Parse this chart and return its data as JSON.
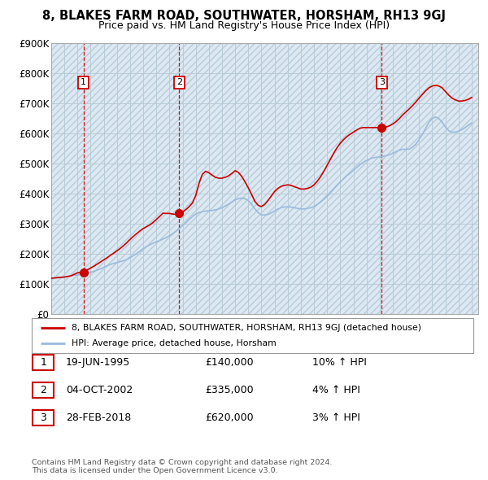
{
  "title": "8, BLAKES FARM ROAD, SOUTHWATER, HORSHAM, RH13 9GJ",
  "subtitle": "Price paid vs. HM Land Registry's House Price Index (HPI)",
  "ylim": [
    0,
    900000
  ],
  "yticks": [
    0,
    100000,
    200000,
    300000,
    400000,
    500000,
    600000,
    700000,
    800000,
    900000
  ],
  "ytick_labels": [
    "£0",
    "£100K",
    "£200K",
    "£300K",
    "£400K",
    "£500K",
    "£600K",
    "£700K",
    "£800K",
    "£900K"
  ],
  "xlim_start": 1993.0,
  "xlim_end": 2025.5,
  "sales": [
    {
      "year": 1995.46,
      "price": 140000,
      "label": "1"
    },
    {
      "year": 2002.75,
      "price": 335000,
      "label": "2"
    },
    {
      "year": 2018.16,
      "price": 620000,
      "label": "3"
    }
  ],
  "sale_vline_color": "#cc0000",
  "sale_dot_color": "#cc0000",
  "hpi_line_color": "#99bbdd",
  "price_line_color": "#cc0000",
  "hatch_bg_color": "#dde8f0",
  "plot_bg_color": "#e8eff5",
  "legend_items": [
    "8, BLAKES FARM ROAD, SOUTHWATER, HORSHAM, RH13 9GJ (detached house)",
    "HPI: Average price, detached house, Horsham"
  ],
  "table_rows": [
    {
      "num": "1",
      "date": "19-JUN-1995",
      "price": "£140,000",
      "hpi": "10% ↑ HPI"
    },
    {
      "num": "2",
      "date": "04-OCT-2002",
      "price": "£335,000",
      "hpi": "4% ↑ HPI"
    },
    {
      "num": "3",
      "date": "28-FEB-2018",
      "price": "£620,000",
      "hpi": "3% ↑ HPI"
    }
  ],
  "footnote": "Contains HM Land Registry data © Crown copyright and database right 2024.\nThis data is licensed under the Open Government Licence v3.0.",
  "hpi_data_x": [
    1993.0,
    1993.25,
    1993.5,
    1993.75,
    1994.0,
    1994.25,
    1994.5,
    1994.75,
    1995.0,
    1995.25,
    1995.5,
    1995.75,
    1996.0,
    1996.25,
    1996.5,
    1996.75,
    1997.0,
    1997.25,
    1997.5,
    1997.75,
    1998.0,
    1998.25,
    1998.5,
    1998.75,
    1999.0,
    1999.25,
    1999.5,
    1999.75,
    2000.0,
    2000.25,
    2000.5,
    2000.75,
    2001.0,
    2001.25,
    2001.5,
    2001.75,
    2002.0,
    2002.25,
    2002.5,
    2002.75,
    2003.0,
    2003.25,
    2003.5,
    2003.75,
    2004.0,
    2004.25,
    2004.5,
    2004.75,
    2005.0,
    2005.25,
    2005.5,
    2005.75,
    2006.0,
    2006.25,
    2006.5,
    2006.75,
    2007.0,
    2007.25,
    2007.5,
    2007.75,
    2008.0,
    2008.25,
    2008.5,
    2008.75,
    2009.0,
    2009.25,
    2009.5,
    2009.75,
    2010.0,
    2010.25,
    2010.5,
    2010.75,
    2011.0,
    2011.25,
    2011.5,
    2011.75,
    2012.0,
    2012.25,
    2012.5,
    2012.75,
    2013.0,
    2013.25,
    2013.5,
    2013.75,
    2014.0,
    2014.25,
    2014.5,
    2014.75,
    2015.0,
    2015.25,
    2015.5,
    2015.75,
    2016.0,
    2016.25,
    2016.5,
    2016.75,
    2017.0,
    2017.25,
    2017.5,
    2017.75,
    2018.0,
    2018.25,
    2018.5,
    2018.75,
    2019.0,
    2019.25,
    2019.5,
    2019.75,
    2020.0,
    2020.25,
    2020.5,
    2020.75,
    2021.0,
    2021.25,
    2021.5,
    2021.75,
    2022.0,
    2022.25,
    2022.5,
    2022.75,
    2023.0,
    2023.25,
    2023.5,
    2023.75,
    2024.0,
    2024.25,
    2024.5,
    2024.75,
    2025.0
  ],
  "hpi_data_y": [
    120000,
    121000,
    122000,
    123000,
    124000,
    126000,
    128000,
    130000,
    131000,
    132000,
    134000,
    137000,
    140000,
    143000,
    147000,
    151000,
    156000,
    161000,
    166000,
    169000,
    172000,
    175000,
    178000,
    182000,
    188000,
    195000,
    202000,
    210000,
    218000,
    225000,
    231000,
    236000,
    241000,
    245000,
    250000,
    255000,
    261000,
    268000,
    276000,
    285000,
    295000,
    305000,
    315000,
    325000,
    333000,
    338000,
    341000,
    343000,
    344000,
    345000,
    347000,
    350000,
    354000,
    360000,
    366000,
    373000,
    380000,
    384000,
    386000,
    384000,
    378000,
    366000,
    350000,
    338000,
    330000,
    330000,
    332000,
    337000,
    343000,
    350000,
    354000,
    357000,
    357000,
    356000,
    354000,
    352000,
    350000,
    350000,
    352000,
    354000,
    358000,
    365000,
    373000,
    382000,
    392000,
    404000,
    416000,
    428000,
    440000,
    450000,
    460000,
    469000,
    478000,
    488000,
    497000,
    505000,
    511000,
    516000,
    520000,
    521000,
    522000,
    524000,
    527000,
    530000,
    535000,
    540000,
    545000,
    548000,
    548000,
    548000,
    555000,
    565000,
    580000,
    598000,
    618000,
    638000,
    650000,
    655000,
    650000,
    638000,
    622000,
    610000,
    605000,
    605000,
    608000,
    613000,
    620000,
    628000,
    635000
  ],
  "price_data_x": [
    1993.0,
    1993.25,
    1993.5,
    1993.75,
    1994.0,
    1994.25,
    1994.5,
    1994.75,
    1995.0,
    1995.25,
    1995.5,
    1995.75,
    1996.0,
    1996.25,
    1996.5,
    1996.75,
    1997.0,
    1997.25,
    1997.5,
    1997.75,
    1998.0,
    1998.25,
    1998.5,
    1998.75,
    1999.0,
    1999.25,
    1999.5,
    1999.75,
    2000.0,
    2000.25,
    2000.5,
    2000.75,
    2001.0,
    2001.25,
    2001.5,
    2001.75,
    2002.0,
    2002.25,
    2002.5,
    2002.75,
    2003.0,
    2003.25,
    2003.5,
    2003.75,
    2004.0,
    2004.25,
    2004.5,
    2004.75,
    2005.0,
    2005.25,
    2005.5,
    2005.75,
    2006.0,
    2006.25,
    2006.5,
    2006.75,
    2007.0,
    2007.25,
    2007.5,
    2007.75,
    2008.0,
    2008.25,
    2008.5,
    2008.75,
    2009.0,
    2009.25,
    2009.5,
    2009.75,
    2010.0,
    2010.25,
    2010.5,
    2010.75,
    2011.0,
    2011.25,
    2011.5,
    2011.75,
    2012.0,
    2012.25,
    2012.5,
    2012.75,
    2013.0,
    2013.25,
    2013.5,
    2013.75,
    2014.0,
    2014.25,
    2014.5,
    2014.75,
    2015.0,
    2015.25,
    2015.5,
    2015.75,
    2016.0,
    2016.25,
    2016.5,
    2016.75,
    2017.0,
    2017.25,
    2017.5,
    2017.75,
    2018.0,
    2018.25,
    2018.5,
    2018.75,
    2019.0,
    2019.25,
    2019.5,
    2019.75,
    2020.0,
    2020.25,
    2020.5,
    2020.75,
    2021.0,
    2021.25,
    2021.5,
    2021.75,
    2022.0,
    2022.25,
    2022.5,
    2022.75,
    2023.0,
    2023.25,
    2023.5,
    2023.75,
    2024.0,
    2024.25,
    2024.5,
    2024.75,
    2025.0
  ],
  "price_data_y": [
    120000,
    121000,
    122000,
    123000,
    124000,
    126000,
    128000,
    133000,
    138000,
    140000,
    143000,
    148000,
    154000,
    160000,
    167000,
    174000,
    181000,
    188000,
    196000,
    203000,
    211000,
    219000,
    228000,
    238000,
    249000,
    259000,
    268000,
    277000,
    285000,
    291000,
    297000,
    305000,
    315000,
    325000,
    336000,
    335000,
    335000,
    333000,
    332000,
    335000,
    340000,
    348000,
    358000,
    370000,
    395000,
    435000,
    465000,
    475000,
    470000,
    462000,
    455000,
    452000,
    452000,
    455000,
    460000,
    468000,
    477000,
    471000,
    458000,
    440000,
    420000,
    398000,
    375000,
    362000,
    358000,
    365000,
    378000,
    393000,
    408000,
    418000,
    425000,
    428000,
    430000,
    428000,
    424000,
    420000,
    416000,
    416000,
    418000,
    422000,
    430000,
    442000,
    457000,
    475000,
    495000,
    515000,
    535000,
    553000,
    568000,
    580000,
    590000,
    598000,
    605000,
    612000,
    618000,
    620000,
    620000,
    620000,
    620000,
    620000,
    620000,
    620000,
    622000,
    626000,
    632000,
    640000,
    650000,
    662000,
    672000,
    682000,
    693000,
    705000,
    718000,
    730000,
    742000,
    752000,
    758000,
    760000,
    758000,
    752000,
    740000,
    728000,
    718000,
    712000,
    708000,
    708000,
    710000,
    714000,
    720000
  ]
}
